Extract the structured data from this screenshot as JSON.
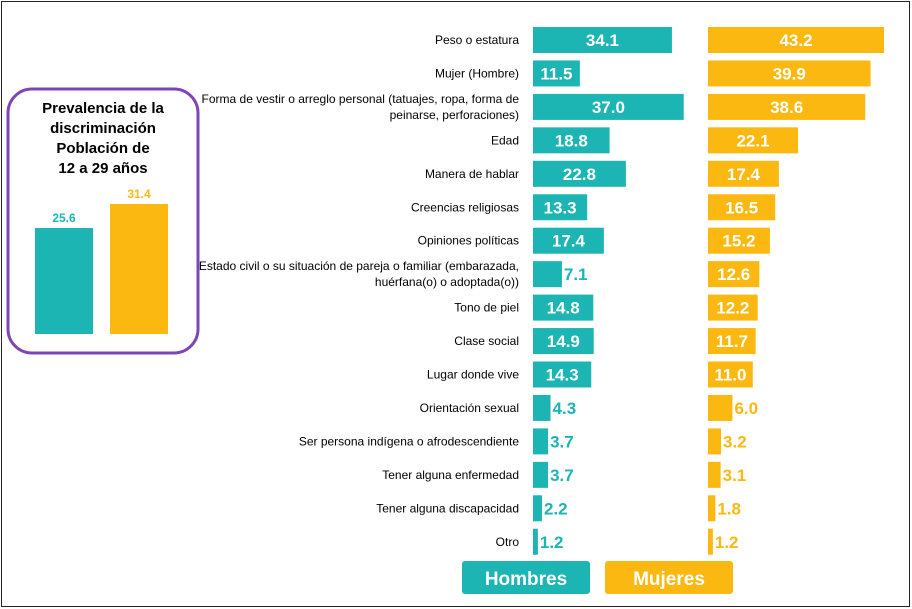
{
  "colors": {
    "hombres": "#1DB4B4",
    "mujeres": "#FBB811",
    "inset_border": "#7E45B5"
  },
  "chart_data": [
    {
      "type": "bar",
      "orientation": "horizontal",
      "categories": [
        "Peso o estatura",
        "Mujer (Hombre)",
        [
          "Forma de vestir o arreglo personal (tatuajes, ropa, forma de",
          "peinarse, perforaciones)"
        ],
        "Edad",
        "Manera de hablar",
        "Creencias religiosas",
        "Opiniones políticas",
        [
          "Estado civil o su situación de pareja o familiar (embarazada,",
          "huérfana(o) o adoptada(o))"
        ],
        "Tono de piel",
        "Clase social",
        "Lugar donde vive",
        "Orientación  sexual",
        "Ser persona indígena o afrodescendiente",
        "Tener alguna enfermedad",
        "Tener alguna discapacidad",
        "Otro"
      ],
      "series": [
        {
          "name": "Hombres",
          "values": [
            34.1,
            11.5,
            37.0,
            18.8,
            22.8,
            13.3,
            17.4,
            7.1,
            14.8,
            14.9,
            14.3,
            4.3,
            3.7,
            3.7,
            2.2,
            1.2
          ]
        },
        {
          "name": "Mujeres",
          "values": [
            43.2,
            39.9,
            38.6,
            22.1,
            17.4,
            16.5,
            15.2,
            12.6,
            12.2,
            11.7,
            11.0,
            6.0,
            3.2,
            3.1,
            1.8,
            1.2
          ]
        }
      ],
      "legend": [
        "Hombres",
        "Mujeres"
      ]
    },
    {
      "type": "bar",
      "title": [
        "Prevalencia de la",
        "discriminación",
        "Población de",
        "12 a 29 años"
      ],
      "series": [
        {
          "name": "Hombres",
          "values": [
            25.6
          ]
        },
        {
          "name": "Mujeres",
          "values": [
            31.4
          ]
        }
      ]
    }
  ]
}
